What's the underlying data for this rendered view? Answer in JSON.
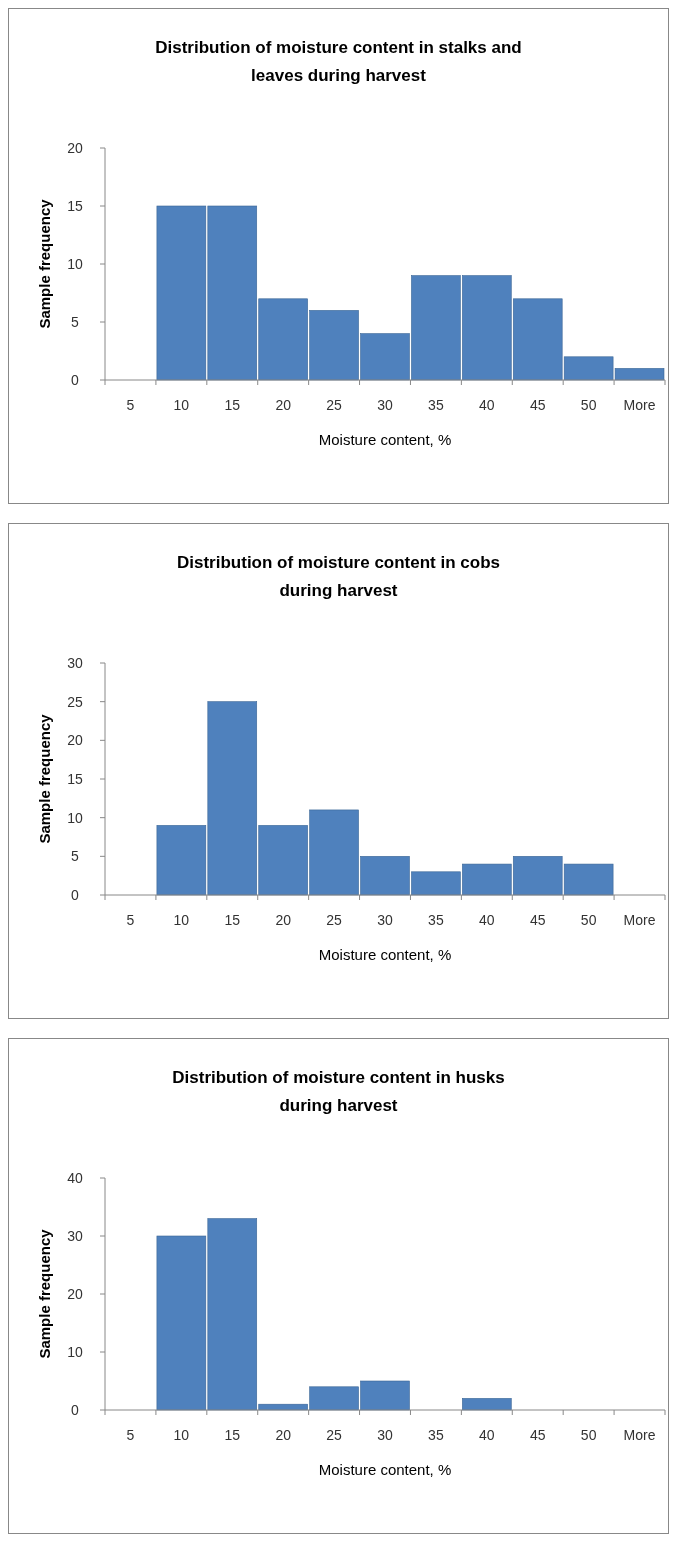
{
  "chart_data": [
    {
      "type": "bar",
      "title": "Distribution of moisture content in stalks and leaves during harvest",
      "xlabel": "Moisture content, %",
      "ylabel": "Sample frequency",
      "categories": [
        "5",
        "10",
        "15",
        "20",
        "25",
        "30",
        "35",
        "40",
        "45",
        "50",
        "More"
      ],
      "values": [
        0,
        15,
        15,
        7,
        6,
        4,
        9,
        9,
        7,
        2,
        1
      ],
      "color": "#4f81bd",
      "ylim": [
        0,
        20
      ],
      "yticks": [
        0,
        5,
        10,
        15,
        20
      ]
    },
    {
      "type": "bar",
      "title": "Distribution of moisture content in cobs during harvest",
      "xlabel": "Moisture content, %",
      "ylabel": "Sample frequency",
      "categories": [
        "5",
        "10",
        "15",
        "20",
        "25",
        "30",
        "35",
        "40",
        "45",
        "50",
        "More"
      ],
      "values": [
        0,
        9,
        25,
        9,
        11,
        5,
        3,
        4,
        5,
        4,
        0
      ],
      "color": "#4f81bd",
      "ylim": [
        0,
        30
      ],
      "yticks": [
        0,
        5,
        10,
        15,
        20,
        25,
        30
      ]
    },
    {
      "type": "bar",
      "title": "Distribution of moisture content in husks during harvest",
      "xlabel": "Moisture content, %",
      "ylabel": "Sample frequency",
      "categories": [
        "5",
        "10",
        "15",
        "20",
        "25",
        "30",
        "35",
        "40",
        "45",
        "50",
        "More"
      ],
      "values": [
        0,
        30,
        33,
        1,
        4,
        5,
        0,
        2,
        0,
        0,
        0
      ],
      "color": "#4f81bd",
      "ylim": [
        0,
        40
      ],
      "yticks": [
        0,
        10,
        20,
        30,
        40
      ]
    }
  ]
}
